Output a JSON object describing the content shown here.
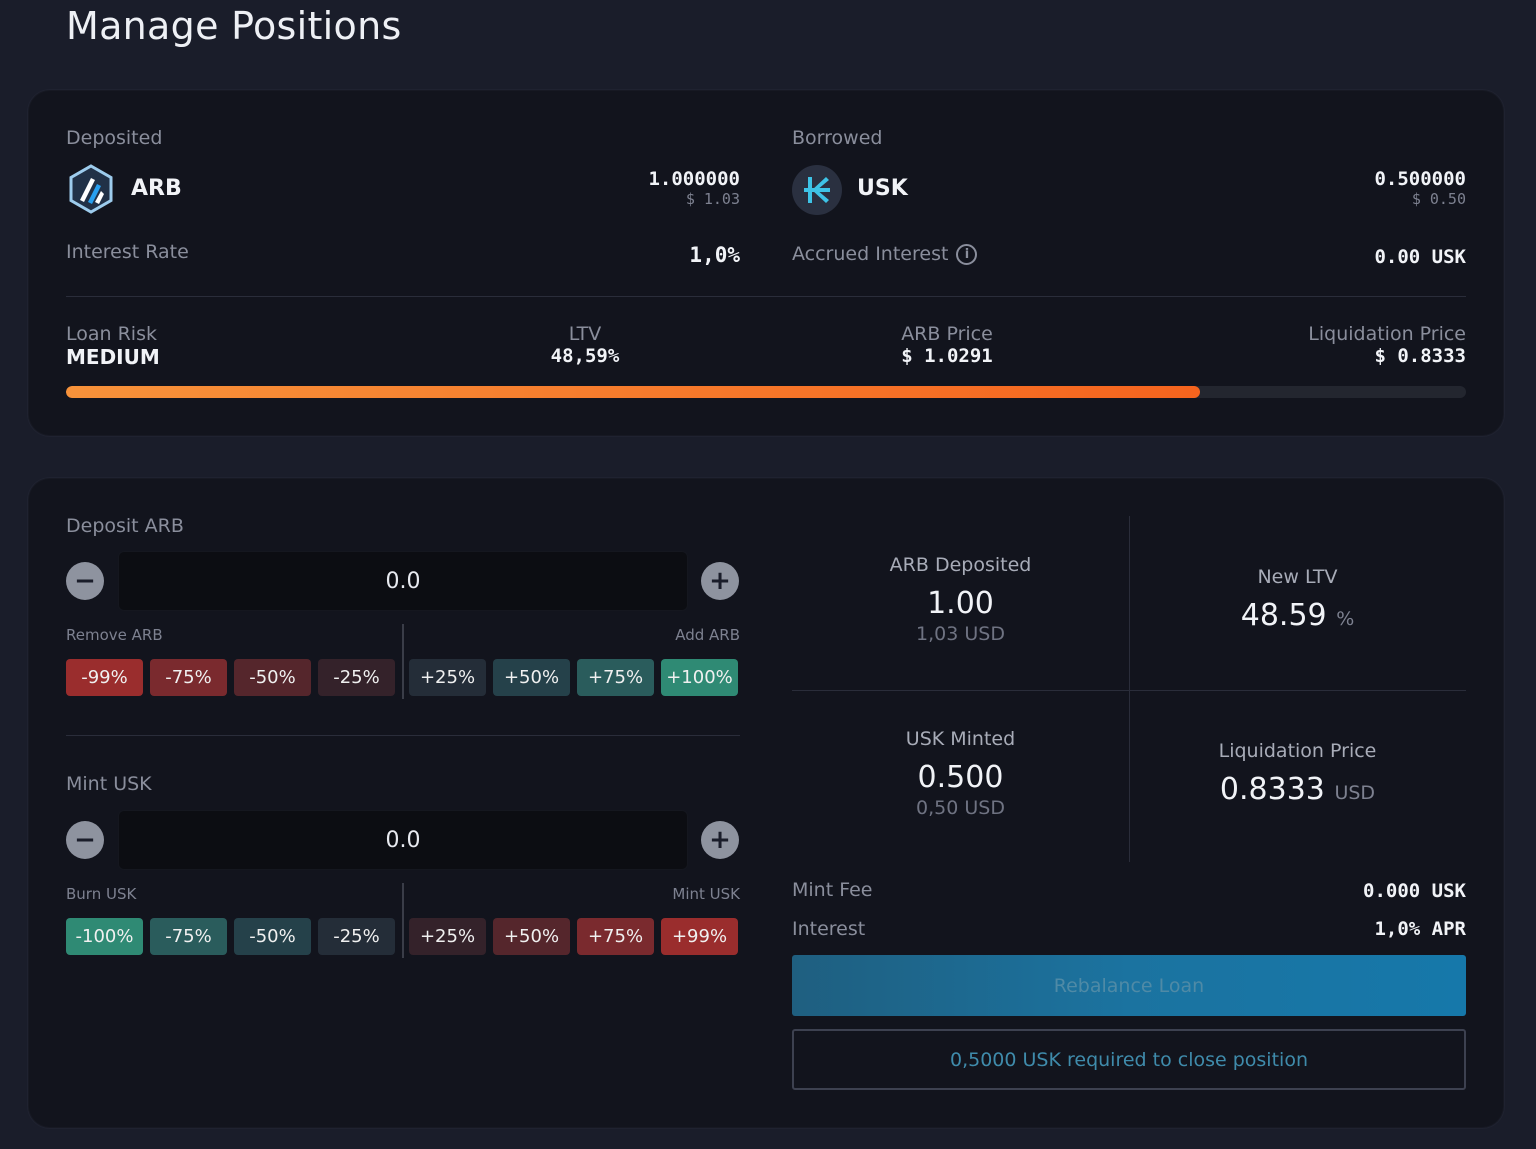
{
  "page": {
    "title": "Manage Positions"
  },
  "position": {
    "deposited_label": "Deposited",
    "deposited_token": "ARB",
    "deposited_amount": "1.000000",
    "deposited_usd": "$ 1.03",
    "interest_rate_label": "Interest Rate",
    "interest_rate_value": "1,0%",
    "borrowed_label": "Borrowed",
    "borrowed_token": "USK",
    "borrowed_amount": "0.500000",
    "borrowed_usd": "$ 0.50",
    "accrued_interest_label": "Accrued Interest",
    "accrued_interest_value": "0.00 USK",
    "info_icon": "info-icon"
  },
  "risk": {
    "loan_risk_label": "Loan Risk",
    "loan_risk_value": "MEDIUM",
    "ltv_label": "LTV",
    "ltv_value": "48,59%",
    "price_label": "ARB Price",
    "price_value": "$ 1.0291",
    "liq_label": "Liquidation Price",
    "liq_value": "$ 0.8333",
    "bar_fill_fraction": 0.81,
    "bar_color": "#f5641e"
  },
  "deposit": {
    "title": "Deposit ARB",
    "value": "0.0",
    "remove_label": "Remove ARB",
    "add_label": "Add ARB",
    "buttons": [
      "-99%",
      "-75%",
      "-50%",
      "-25%",
      "+25%",
      "+50%",
      "+75%",
      "+100%"
    ]
  },
  "mint": {
    "title": "Mint USK",
    "value": "0.0",
    "burn_label": "Burn USK",
    "mint_label": "Mint USK",
    "buttons": [
      "-100%",
      "-75%",
      "-50%",
      "-25%",
      "+25%",
      "+50%",
      "+75%",
      "+99%"
    ]
  },
  "stats": {
    "arb_deposited_label": "ARB Deposited",
    "arb_deposited_value": "1.00",
    "arb_deposited_usd": "1,03 USD",
    "new_ltv_label": "New LTV",
    "new_ltv_value": "48.59",
    "new_ltv_unit": "%",
    "usk_minted_label": "USK Minted",
    "usk_minted_value": "0.500",
    "usk_minted_usd": "0,50 USD",
    "liq_label": "Liquidation Price",
    "liq_value": "0.8333",
    "liq_unit": "USD"
  },
  "fees": {
    "mint_fee_label": "Mint Fee",
    "mint_fee_value": "0.000 USK",
    "interest_label": "Interest",
    "interest_value": "1,0% APR"
  },
  "actions": {
    "rebalance_label": "Rebalance Loan",
    "close_label": "0,5000 USK required to close position"
  },
  "colors": {
    "accent": "#1b73a0",
    "red_strong": "#9a2d2d",
    "green_strong": "#2f8a74"
  }
}
